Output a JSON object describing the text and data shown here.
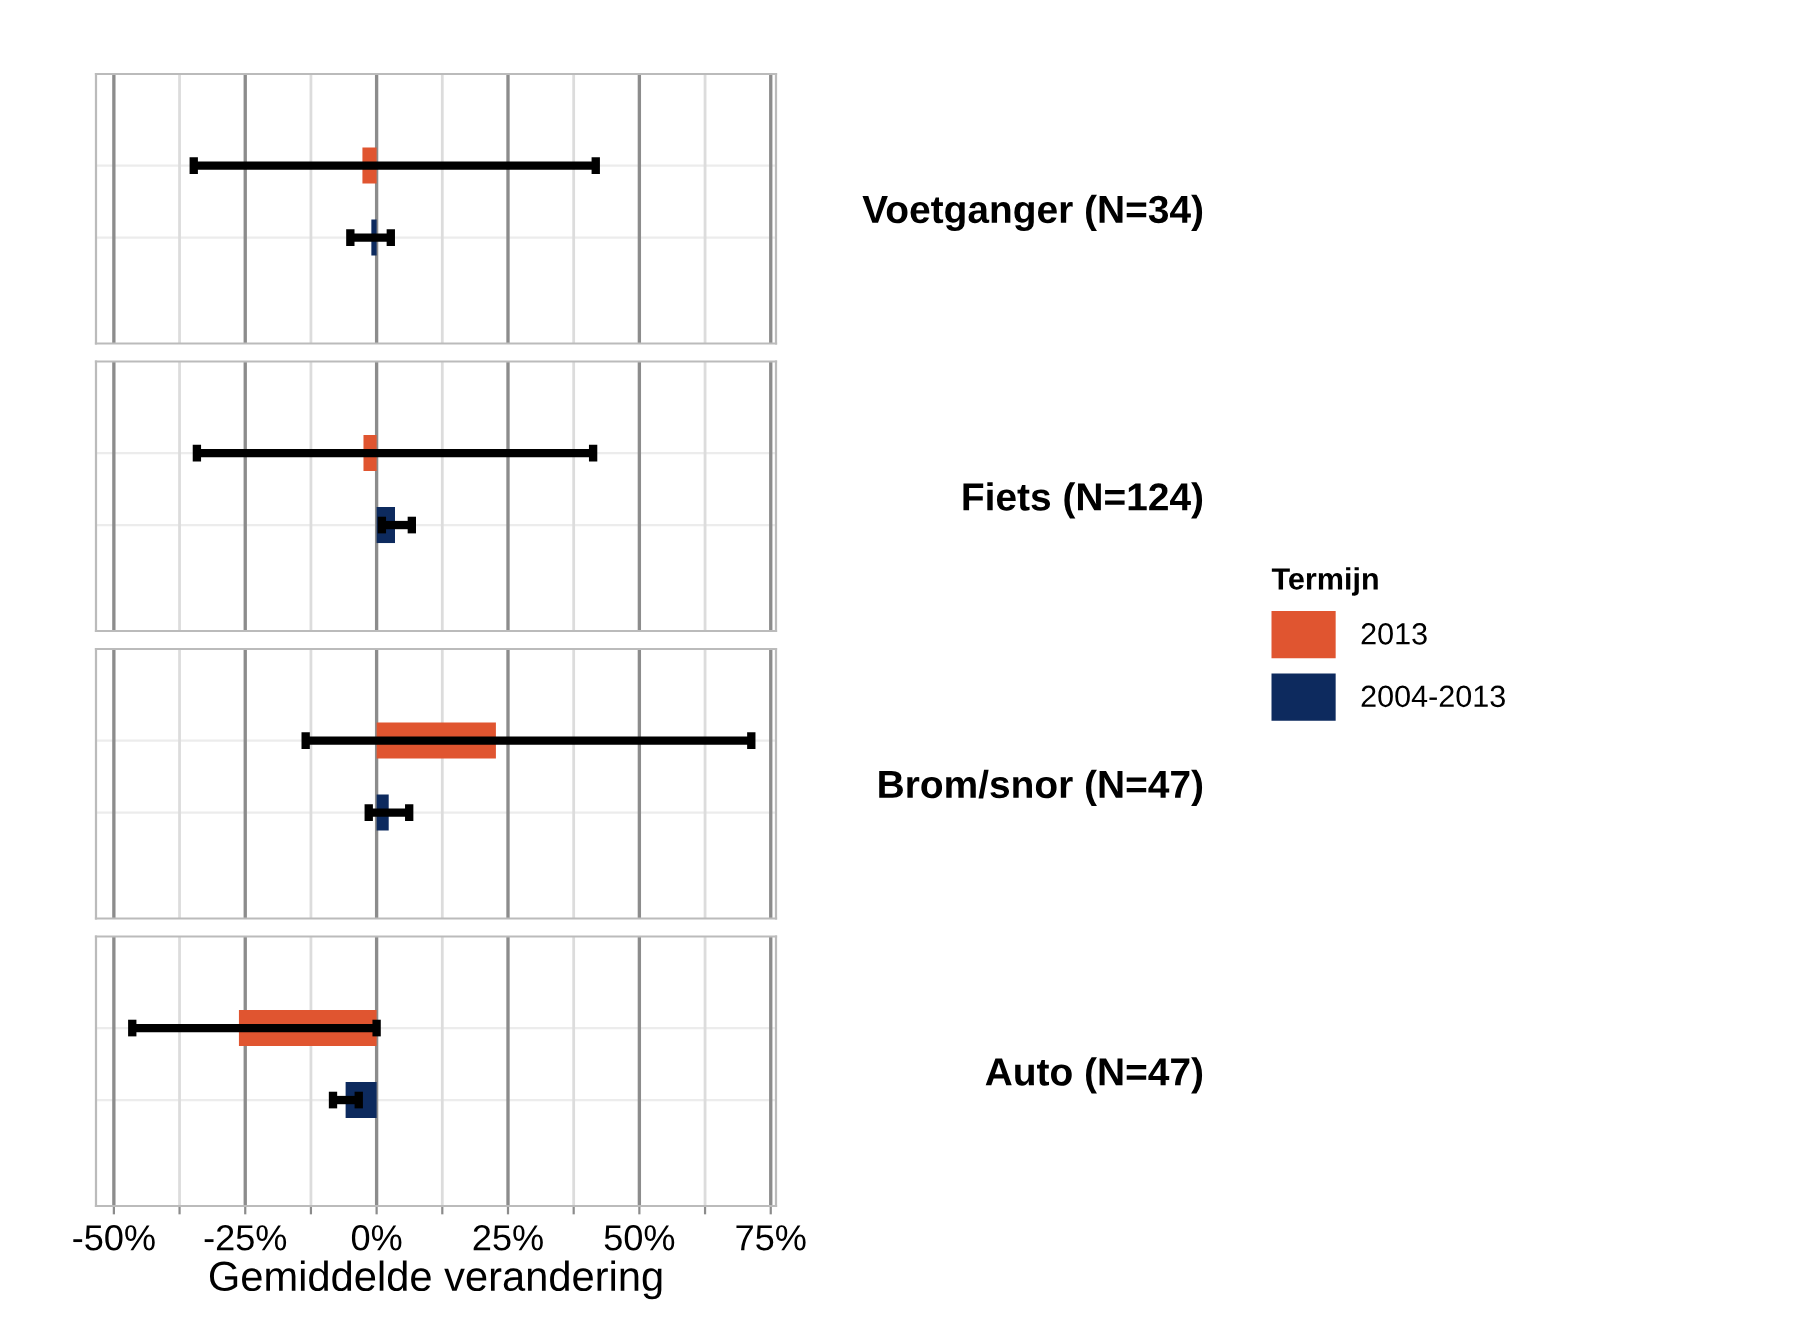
{
  "chart_data": {
    "type": "bar",
    "orientation": "horizontal",
    "xlabel": "Gemiddelde verandering",
    "legend": "right",
    "legend_title": "Termijn",
    "grid": true,
    "categories": [
      "Voetganger (N=34)",
      "Fiets (N=124)",
      "Brom/snor (N=47)",
      "Auto (N=47)"
    ],
    "xlim": [
      -53.4,
      76
    ],
    "xticks": [
      {
        "value": -50,
        "label": "-50%"
      },
      {
        "value": -37.5,
        "label": null
      },
      {
        "value": -25,
        "label": "-25%"
      },
      {
        "value": -12.5,
        "label": null
      },
      {
        "value": 0,
        "label": "0%"
      },
      {
        "value": 12.5,
        "label": null
      },
      {
        "value": 25,
        "label": "25%"
      },
      {
        "value": 37.5,
        "label": null
      },
      {
        "value": 50,
        "label": "50%"
      },
      {
        "value": 62.5,
        "label": null
      },
      {
        "value": 75,
        "label": "75%"
      }
    ],
    "series": [
      {
        "name": "2013",
        "color": "#e05530",
        "values": [
          -2.7,
          -2.5,
          22.7,
          -26.2
        ],
        "errors": [
          [
            -34.8,
            41.7
          ],
          [
            -34.2,
            41.2
          ],
          [
            -13.5,
            71.3
          ],
          [
            -46.5,
            0.0
          ]
        ]
      },
      {
        "name": "2004-2013",
        "color": "#0d2a5e",
        "values": [
          -1.0,
          3.5,
          2.3,
          -5.9
        ],
        "errors": [
          [
            -5.0,
            2.7
          ],
          [
            1.0,
            6.7
          ],
          [
            -1.5,
            6.2
          ],
          [
            -8.3,
            -3.4
          ]
        ]
      }
    ]
  }
}
